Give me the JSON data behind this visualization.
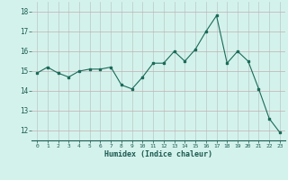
{
  "x": [
    0,
    1,
    2,
    3,
    4,
    5,
    6,
    7,
    8,
    9,
    10,
    11,
    12,
    13,
    14,
    15,
    16,
    17,
    18,
    19,
    20,
    21,
    22,
    23
  ],
  "y": [
    14.9,
    15.2,
    14.9,
    14.7,
    15.0,
    15.1,
    15.1,
    15.2,
    14.3,
    14.1,
    14.7,
    15.4,
    15.4,
    16.0,
    15.5,
    16.1,
    17.0,
    17.8,
    15.4,
    16.0,
    15.5,
    14.1,
    12.6,
    11.9
  ],
  "xlabel": "Humidex (Indice chaleur)",
  "ylim": [
    11.5,
    18.5
  ],
  "yticks": [
    12,
    13,
    14,
    15,
    16,
    17,
    18
  ],
  "xticks": [
    0,
    1,
    2,
    3,
    4,
    5,
    6,
    7,
    8,
    9,
    10,
    11,
    12,
    13,
    14,
    15,
    16,
    17,
    18,
    19,
    20,
    21,
    22,
    23
  ],
  "line_color": "#1a6b5a",
  "marker_color": "#1a6b5a",
  "bg_color": "#d4f2ec",
  "vgrid_color": "#b8c8c4",
  "hgrid_color": "#c4aeb0"
}
